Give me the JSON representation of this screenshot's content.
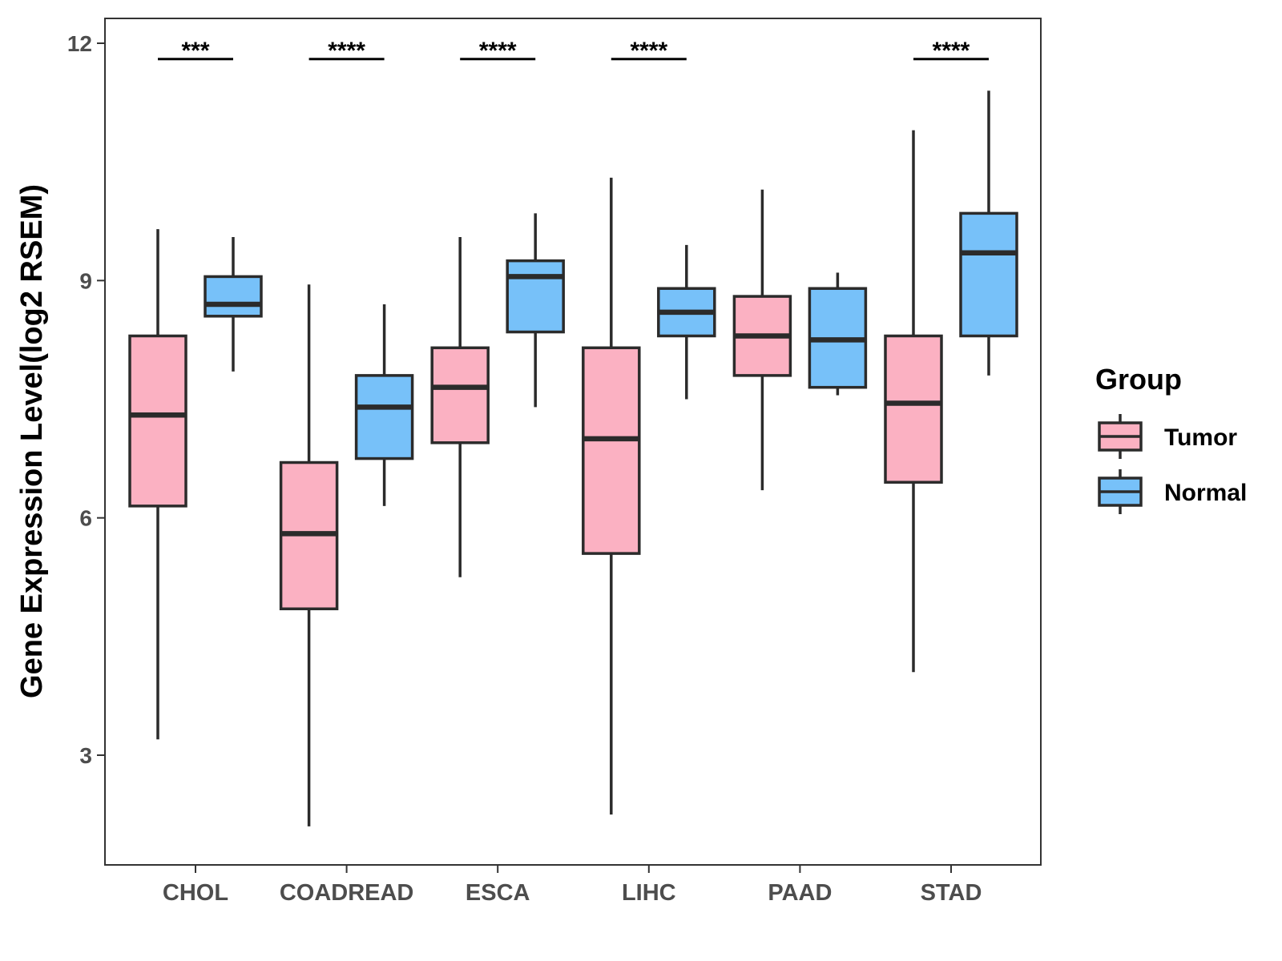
{
  "chart_data": {
    "type": "boxplot",
    "title": "",
    "xlabel": "",
    "ylabel": "Gene Expression Level(log2 RSEM)",
    "ylim": [
      1.9,
      12.3
    ],
    "yticks": [
      3,
      6,
      9,
      12
    ],
    "categories": [
      "CHOL",
      "COADREAD",
      "ESCA",
      "LIHC",
      "PAAD",
      "STAD"
    ],
    "series": [
      {
        "name": "Tumor",
        "color": "#FBB1C2",
        "boxes": [
          {
            "whisker_low": 3.2,
            "q1": 6.15,
            "median": 7.3,
            "q3": 8.3,
            "whisker_high": 9.65
          },
          {
            "whisker_low": 2.1,
            "q1": 4.85,
            "median": 5.8,
            "q3": 6.7,
            "whisker_high": 8.95
          },
          {
            "whisker_low": 5.25,
            "q1": 6.95,
            "median": 7.65,
            "q3": 8.15,
            "whisker_high": 9.55
          },
          {
            "whisker_low": 2.25,
            "q1": 5.55,
            "median": 7.0,
            "q3": 8.15,
            "whisker_high": 10.3
          },
          {
            "whisker_low": 6.35,
            "q1": 7.8,
            "median": 8.3,
            "q3": 8.8,
            "whisker_high": 10.15
          },
          {
            "whisker_low": 4.05,
            "q1": 6.45,
            "median": 7.45,
            "q3": 8.3,
            "whisker_high": 10.9
          }
        ]
      },
      {
        "name": "Normal",
        "color": "#77C1F9",
        "boxes": [
          {
            "whisker_low": 7.85,
            "q1": 8.55,
            "median": 8.7,
            "q3": 9.05,
            "whisker_high": 9.55
          },
          {
            "whisker_low": 6.15,
            "q1": 6.75,
            "median": 7.4,
            "q3": 7.8,
            "whisker_high": 8.7
          },
          {
            "whisker_low": 7.4,
            "q1": 8.35,
            "median": 9.05,
            "q3": 9.25,
            "whisker_high": 9.85
          },
          {
            "whisker_low": 7.5,
            "q1": 8.3,
            "median": 8.6,
            "q3": 8.9,
            "whisker_high": 9.45
          },
          {
            "whisker_low": 7.55,
            "q1": 7.65,
            "median": 8.25,
            "q3": 8.9,
            "whisker_high": 9.1
          },
          {
            "whisker_low": 7.8,
            "q1": 8.3,
            "median": 9.35,
            "q3": 9.85,
            "whisker_high": 11.4
          }
        ]
      }
    ],
    "significance": [
      "***",
      "****",
      "****",
      "****",
      "",
      "****"
    ],
    "significance_y": 11.8,
    "legend": {
      "title": "Group",
      "position": "right",
      "entries": [
        "Tumor",
        "Normal"
      ]
    },
    "grid": false
  }
}
